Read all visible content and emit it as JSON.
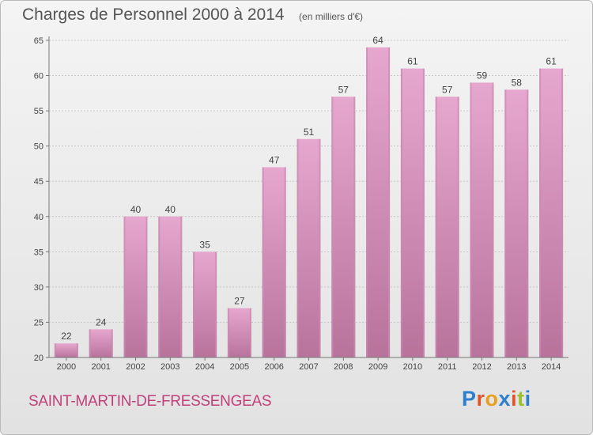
{
  "header": {
    "title": "Charges de Personnel 2000 à 2014",
    "subtitle": "(en milliers d'€)"
  },
  "footer": {
    "commune": "SAINT-MARTIN-DE-FRESSENGEAS",
    "logo_text": "Proxiti",
    "logo_colors": [
      "#2f7fd0",
      "#e0542a",
      "#e8a020",
      "#2f7fd0",
      "#e0542a",
      "#9ac02b",
      "#2f7fd0"
    ]
  },
  "chart_data": {
    "type": "bar",
    "categories": [
      "2000",
      "2001",
      "2002",
      "2003",
      "2004",
      "2005",
      "2006",
      "2007",
      "2008",
      "2009",
      "2010",
      "2011",
      "2012",
      "2013",
      "2014"
    ],
    "values": [
      22,
      24,
      40,
      40,
      35,
      27,
      47,
      51,
      57,
      64,
      61,
      57,
      59,
      58,
      61
    ],
    "ylim": [
      20,
      65
    ],
    "yticks": [
      20,
      25,
      30,
      35,
      40,
      45,
      50,
      55,
      60,
      65
    ],
    "grid": true,
    "bar_color_top": "#e6a7cf",
    "bar_color_bottom": "#b8739b",
    "bar_side_color": "#c98ab0"
  }
}
